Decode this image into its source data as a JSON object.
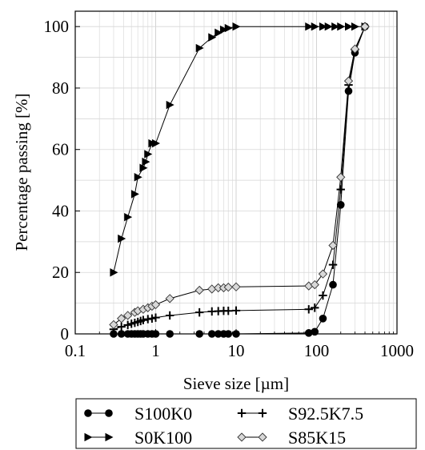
{
  "chart_data": {
    "type": "line",
    "xlabel": "Sieve size [µm]",
    "ylabel": "Percentage passing [%]",
    "xscale": "log",
    "xlim": [
      0.1,
      1000
    ],
    "ylim": [
      0,
      105
    ],
    "grid": true,
    "legend_position": "bottom",
    "x_tick_labels": [
      "0.1",
      "1",
      "10",
      "100",
      "1000"
    ],
    "y_tick_labels": [
      "0",
      "20",
      "40",
      "60",
      "80",
      "100"
    ],
    "x_ticks": [
      0.1,
      1,
      10,
      100,
      1000
    ],
    "y_ticks": [
      0,
      20,
      40,
      60,
      80,
      100
    ],
    "series": [
      {
        "name": "S100K0",
        "marker": "circle",
        "color": "#000000",
        "x": [
          0.3,
          0.375,
          0.45,
          0.5,
          0.55,
          0.6,
          0.65,
          0.7,
          0.8,
          0.9,
          1.0,
          1.5,
          3.5,
          5,
          6,
          7,
          8,
          10,
          80,
          95,
          120,
          160,
          200,
          250,
          300,
          400
        ],
        "y": [
          0,
          0,
          0,
          0,
          0,
          0,
          0,
          0,
          0,
          0,
          0,
          0,
          0,
          0,
          0,
          0,
          0,
          0,
          0.3,
          0.7,
          5,
          16,
          42,
          79,
          91.5,
          100
        ]
      },
      {
        "name": "S0K100",
        "marker": "triangle-right",
        "color": "#000000",
        "x": [
          0.3,
          0.375,
          0.45,
          0.55,
          0.6,
          0.7,
          0.75,
          0.8,
          0.9,
          1.0,
          1.5,
          3.5,
          5,
          6,
          7,
          8,
          10,
          80,
          95,
          120,
          140,
          170,
          200,
          250,
          300,
          400
        ],
        "y": [
          20,
          31,
          38,
          45.5,
          51,
          54,
          56,
          58.5,
          62,
          62,
          74.5,
          93,
          96.5,
          98,
          99,
          99.5,
          100,
          100,
          100,
          100,
          100,
          100,
          100,
          100,
          100,
          100
        ]
      },
      {
        "name": "S92.5K7.5",
        "marker": "plus",
        "color": "#000000",
        "x": [
          0.3,
          0.375,
          0.45,
          0.5,
          0.55,
          0.6,
          0.65,
          0.7,
          0.8,
          0.9,
          1.0,
          1.5,
          3.5,
          5,
          6,
          7,
          8,
          10,
          80,
          95,
          120,
          160,
          200,
          250,
          300,
          400
        ],
        "y": [
          1.5,
          2.3,
          2.9,
          3.3,
          3.6,
          3.9,
          4.2,
          4.5,
          4.8,
          5.0,
          5.3,
          6.0,
          7.0,
          7.3,
          7.4,
          7.5,
          7.5,
          7.6,
          8.0,
          8.5,
          12.5,
          22.5,
          47,
          81,
          92.5,
          100
        ]
      },
      {
        "name": "S85K15",
        "marker": "diamond",
        "color": "#000000",
        "x": [
          0.3,
          0.375,
          0.45,
          0.55,
          0.6,
          0.7,
          0.8,
          0.9,
          1.0,
          1.5,
          3.5,
          5,
          6,
          7,
          8,
          10,
          80,
          95,
          120,
          160,
          200,
          250,
          300,
          400
        ],
        "y": [
          3,
          5,
          6,
          7,
          7.5,
          8,
          8.5,
          9,
          9.5,
          11.5,
          14.2,
          14.6,
          15,
          15,
          15.2,
          15.3,
          15.6,
          16,
          19.5,
          28.8,
          51,
          82.3,
          92.7,
          100
        ]
      }
    ]
  }
}
